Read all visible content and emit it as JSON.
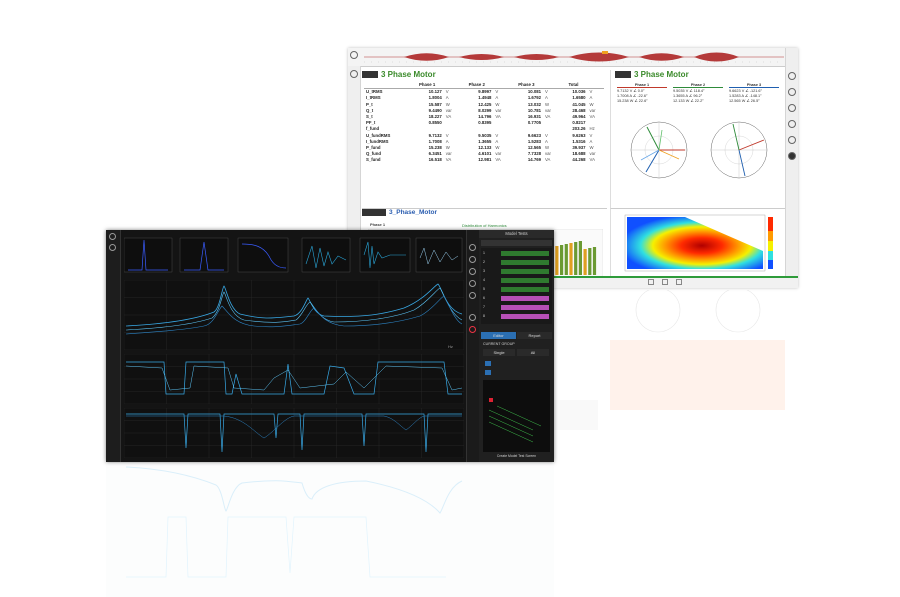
{
  "back_window": {
    "table_panel": {
      "title": "3 Phase Motor",
      "columns": [
        "Phase 1",
        "Phase 2",
        "Phase 3",
        "Total"
      ],
      "rows": [
        {
          "label": "U_tRMS",
          "p1": "10.127",
          "u1": "V",
          "p2": "9.8997",
          "u2": "V",
          "p3": "10.081",
          "u3": "V",
          "t": "10.036",
          "ut": "V"
        },
        {
          "label": "I_tRMS",
          "p1": "1.8004",
          "u1": "A",
          "p2": "1.4948",
          "u2": "A",
          "p3": "1.6792",
          "u3": "A",
          "t": "1.6580",
          "ut": "A"
        },
        {
          "label": "P_t",
          "p1": "15.587",
          "u1": "W",
          "p2": "12.425",
          "u2": "W",
          "p3": "13.032",
          "u3": "W",
          "t": "41.045",
          "ut": "W"
        },
        {
          "label": "Q_t",
          "p1": "9.4490",
          "u1": "var",
          "p2": "8.0299",
          "u2": "var",
          "p3": "10.781",
          "u3": "var",
          "t": "28.468",
          "ut": "var"
        },
        {
          "label": "S_t",
          "p1": "18.227",
          "u1": "VA",
          "p2": "14.796",
          "u2": "VA",
          "p3": "16.931",
          "u3": "VA",
          "t": "49.964",
          "ut": "VA"
        },
        {
          "label": "PF_t",
          "p1": "0.8550",
          "u1": "",
          "p2": "0.8395",
          "u2": "",
          "p3": "0.7705",
          "u3": "",
          "t": "0.8217",
          "ut": ""
        },
        {
          "label": "f_fund",
          "p1": "",
          "u1": "",
          "p2": "",
          "u2": "",
          "p3": "",
          "u3": "",
          "t": "203.26",
          "ut": "Hz"
        },
        {
          "label": "U_fundRMS",
          "p1": "9.7132",
          "u1": "V",
          "p2": "9.5035",
          "u2": "V",
          "p3": "9.6623",
          "u3": "V",
          "t": "9.6263",
          "ut": "V"
        },
        {
          "label": "I_fundRMS",
          "p1": "1.7008",
          "u1": "A",
          "p2": "1.3655",
          "u2": "A",
          "p3": "1.5283",
          "u3": "A",
          "t": "1.5316",
          "ut": "A"
        },
        {
          "label": "P_fund",
          "p1": "15.238",
          "u1": "W",
          "p2": "12.133",
          "u2": "W",
          "p3": "12.565",
          "u3": "W",
          "t": "39.937",
          "ut": "W"
        },
        {
          "label": "Q_fund",
          "p1": "6.3451",
          "u1": "var",
          "p2": "4.6101",
          "u2": "var",
          "p3": "7.7328",
          "u3": "var",
          "t": "18.688",
          "ut": "var"
        },
        {
          "label": "S_fund",
          "p1": "16.518",
          "u1": "VA",
          "p2": "12.981",
          "u2": "VA",
          "p3": "14.769",
          "u3": "VA",
          "t": "44.268",
          "ut": "VA"
        }
      ]
    },
    "vector_panel": {
      "title": "3 Phase Motor",
      "phases": [
        {
          "name": "Phase 1",
          "color": "#c0392b",
          "v_val": "9.7132",
          "v_unit": "V",
          "v_ang": "0.0°",
          "i_val": "1.7008",
          "i_unit": "A",
          "i_ang": "-22.6°",
          "p_val": "15.238",
          "p_unit": "W",
          "p_ang": "22.6°"
        },
        {
          "name": "Phase 2",
          "color": "#2e8b3a",
          "v_val": "9.5035",
          "v_unit": "V",
          "v_ang": "118.4°",
          "i_val": "1.3655",
          "i_unit": "A",
          "i_ang": "96.2°",
          "p_val": "12.133",
          "p_unit": "W",
          "p_ang": "22.2°"
        },
        {
          "name": "Phase 3",
          "color": "#1f5fb0",
          "v_val": "9.6623",
          "v_unit": "V",
          "v_ang": "-121.6°",
          "i_val": "1.5283",
          "i_unit": "A",
          "i_ang": "-148.1°",
          "p_val": "12.565",
          "p_unit": "W",
          "p_ang": "26.5°"
        }
      ]
    },
    "harmonics_panel": {
      "title": "3_Phase_Motor",
      "subtitle": "Phase 1",
      "chart_title": "Distribution of Harmonics"
    }
  },
  "front_window": {
    "side_panel": {
      "header": "Model Tests",
      "tab_left": "Editor",
      "tab_right": "Report",
      "section": "CURRENT GROUP",
      "option_a": "Single",
      "option_b": "All",
      "footer": "Create Model Test Screen",
      "rows": [
        "1",
        "2",
        "3",
        "4",
        "5",
        "6",
        "7",
        "8"
      ]
    },
    "plot_labels": {
      "x_unit": "Hz",
      "top_plot_unit": "dB"
    }
  }
}
